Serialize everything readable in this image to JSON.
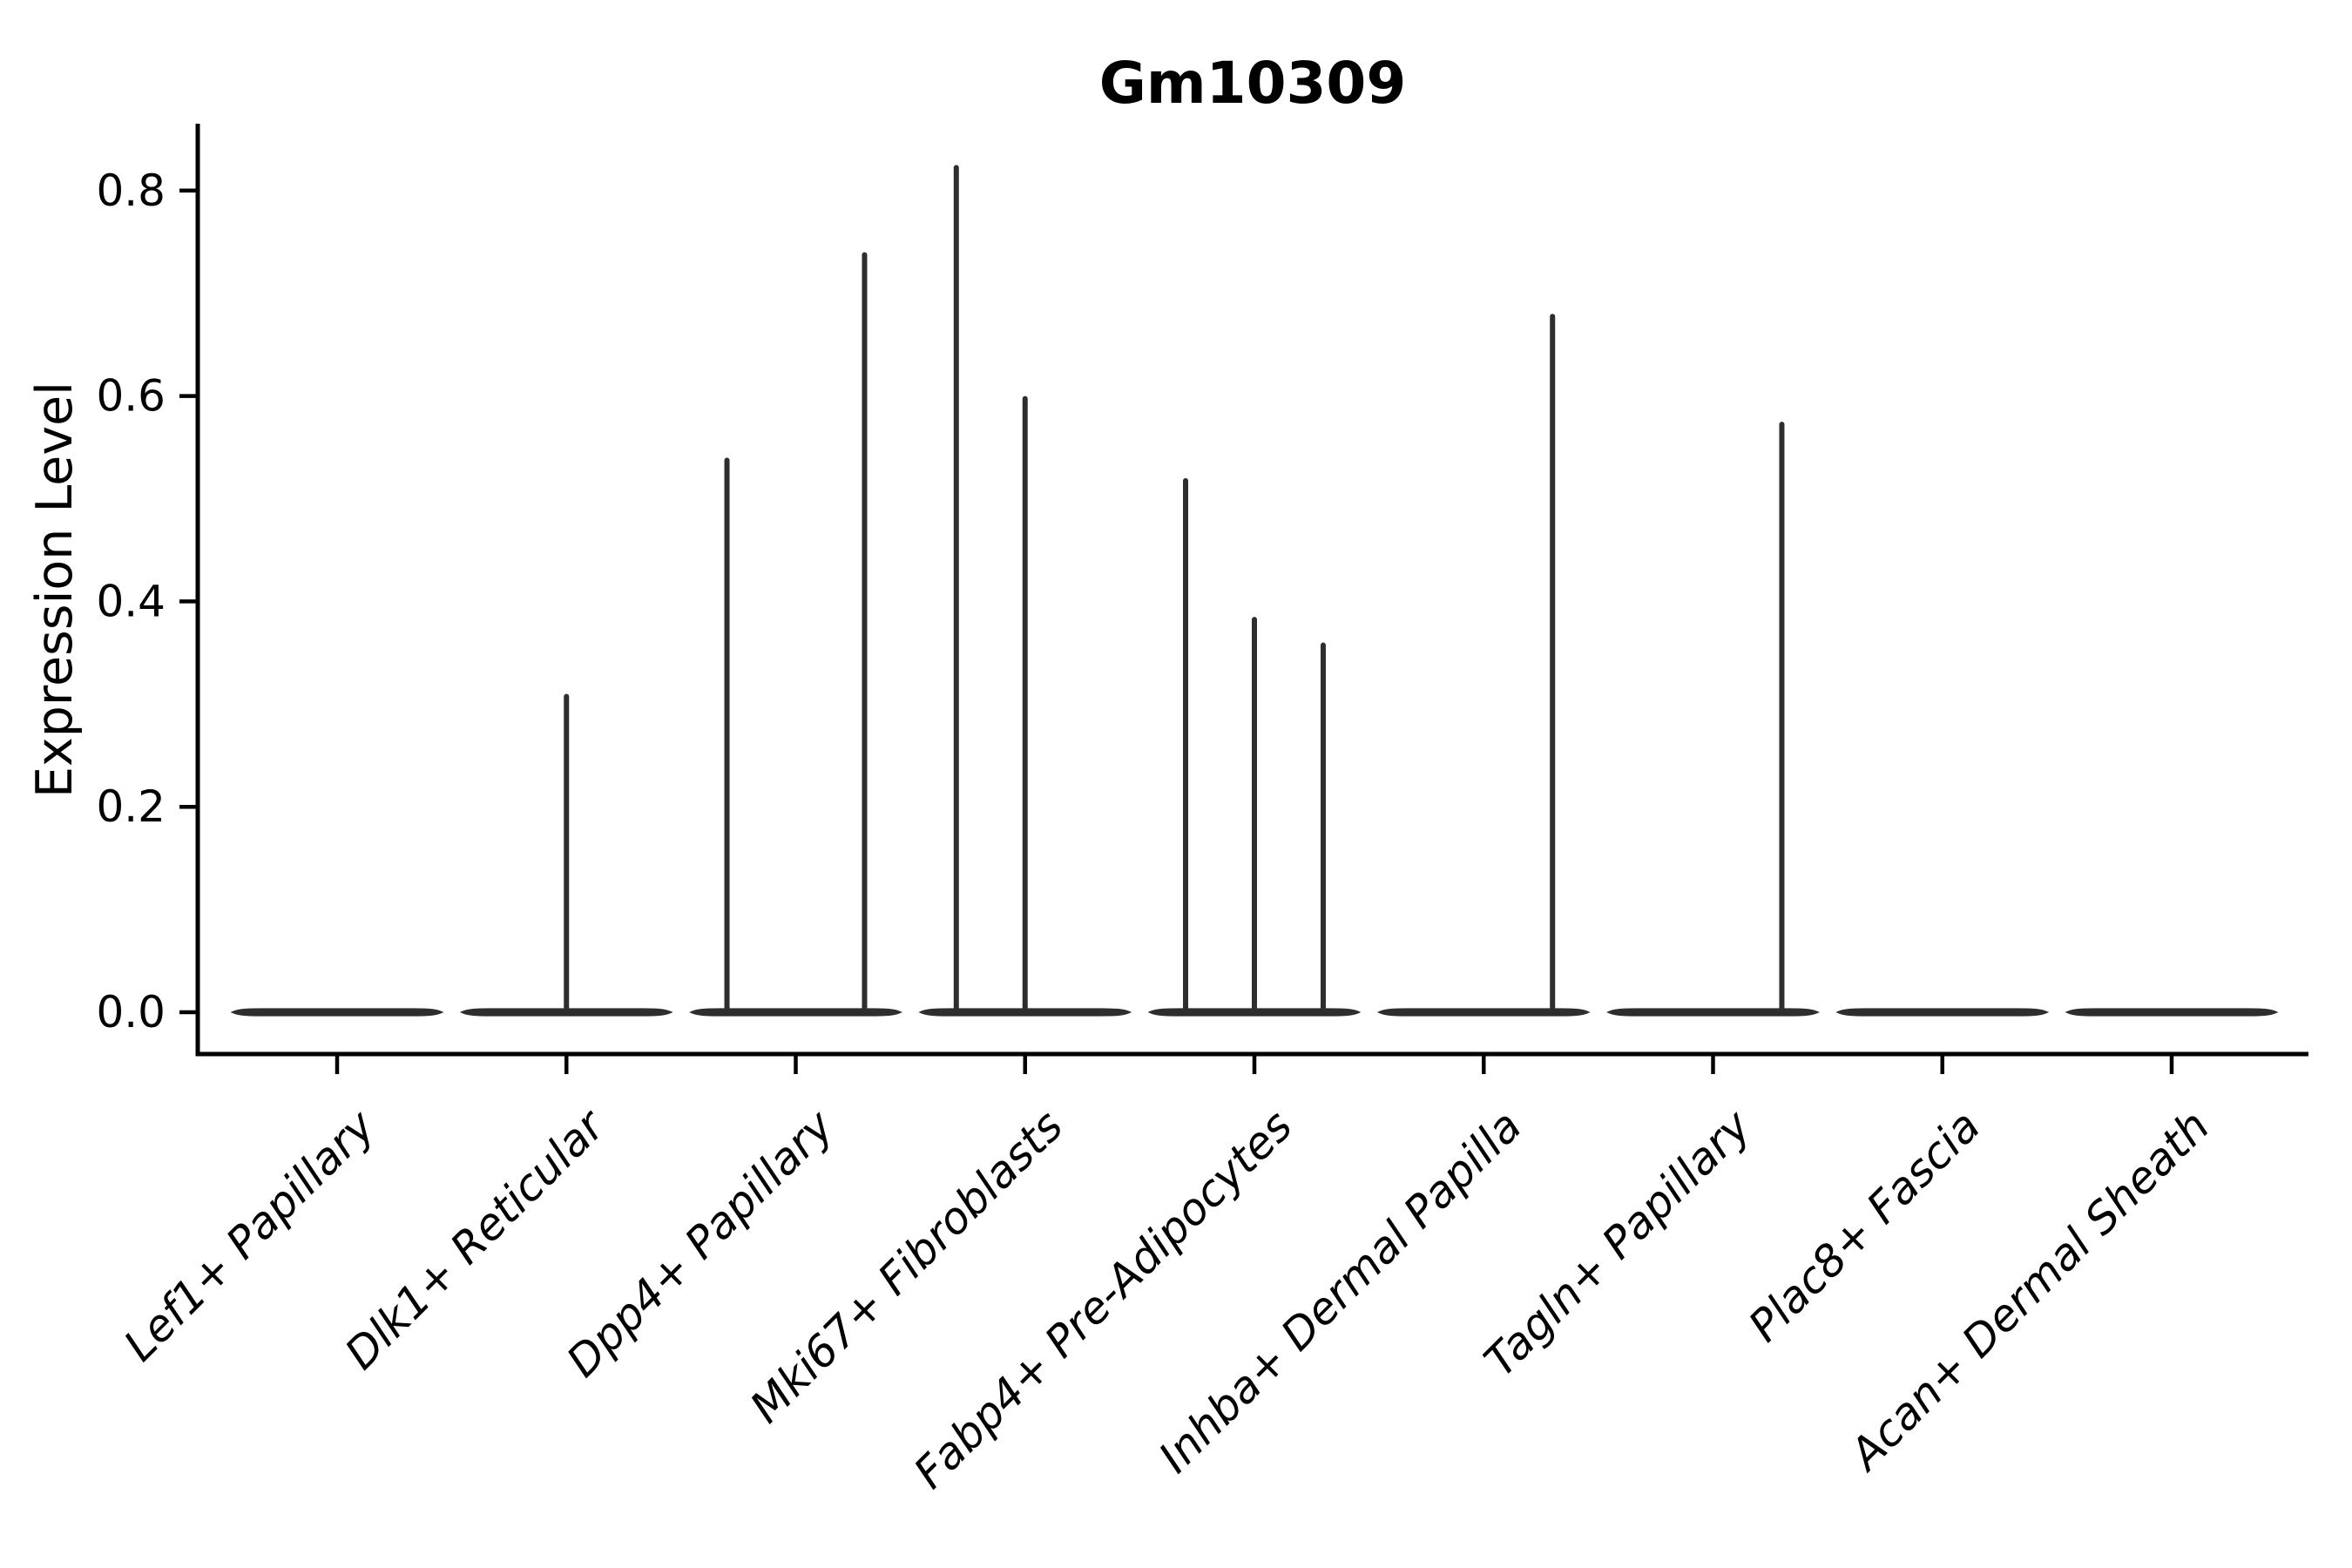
{
  "chart_data": {
    "type": "violin",
    "title": "Gm10309",
    "ylabel": "Expression Level",
    "xlabel": "",
    "grid": false,
    "legend": null,
    "ylim": [
      -0.041,
      0.866
    ],
    "yticks": [
      {
        "value": 0.0,
        "label": "0.0"
      },
      {
        "value": 0.2,
        "label": "0.2"
      },
      {
        "value": 0.4,
        "label": "0.4"
      },
      {
        "value": 0.6,
        "label": "0.6"
      },
      {
        "value": 0.8,
        "label": "0.8"
      }
    ],
    "categories": [
      "Lef1+ Papillary",
      "Dlk1+ Reticular",
      "Dpp4+ Papillary",
      "Mki67+ Fibroblasts",
      "Fabp4+ Pre-Adipocytes",
      "Inhba+ Dermal Papilla",
      "Tagln+ Papillary",
      "Plac8+ Fascia",
      "Acan+ Dermal Sheath"
    ],
    "violins": [
      {
        "category": "Lef1+ Papillary",
        "baseline_value": 0.0,
        "spikes": []
      },
      {
        "category": "Dlk1+ Reticular",
        "baseline_value": 0.0,
        "spikes": [
          {
            "offset": 0.0,
            "value": 0.31
          }
        ]
      },
      {
        "category": "Dpp4+ Papillary",
        "baseline_value": 0.0,
        "spikes": [
          {
            "offset": -0.3,
            "value": 0.54
          },
          {
            "offset": 0.3,
            "value": 0.74
          }
        ]
      },
      {
        "category": "Mki67+ Fibroblasts",
        "baseline_value": 0.0,
        "spikes": [
          {
            "offset": -0.3,
            "value": 0.825
          },
          {
            "offset": 0.0,
            "value": 0.6
          }
        ]
      },
      {
        "category": "Fabp4+ Pre-Adipocytes",
        "baseline_value": 0.0,
        "spikes": [
          {
            "offset": -0.3,
            "value": 0.52
          },
          {
            "offset": 0.0,
            "value": 0.385
          },
          {
            "offset": 0.3,
            "value": 0.36
          }
        ]
      },
      {
        "category": "Inhba+ Dermal Papilla",
        "baseline_value": 0.0,
        "spikes": [
          {
            "offset": 0.3,
            "value": 0.68
          }
        ]
      },
      {
        "category": "Tagln+ Papillary",
        "baseline_value": 0.0,
        "spikes": [
          {
            "offset": 0.3,
            "value": 0.575
          }
        ]
      },
      {
        "category": "Plac8+ Fascia",
        "baseline_value": 0.0,
        "spikes": []
      },
      {
        "category": "Acan+ Dermal Sheath",
        "baseline_value": 0.0,
        "spikes": []
      }
    ],
    "colors": {
      "violin_line": "#2e2e2e",
      "axis": "#000000",
      "text": "#000000",
      "background": "#ffffff"
    }
  }
}
